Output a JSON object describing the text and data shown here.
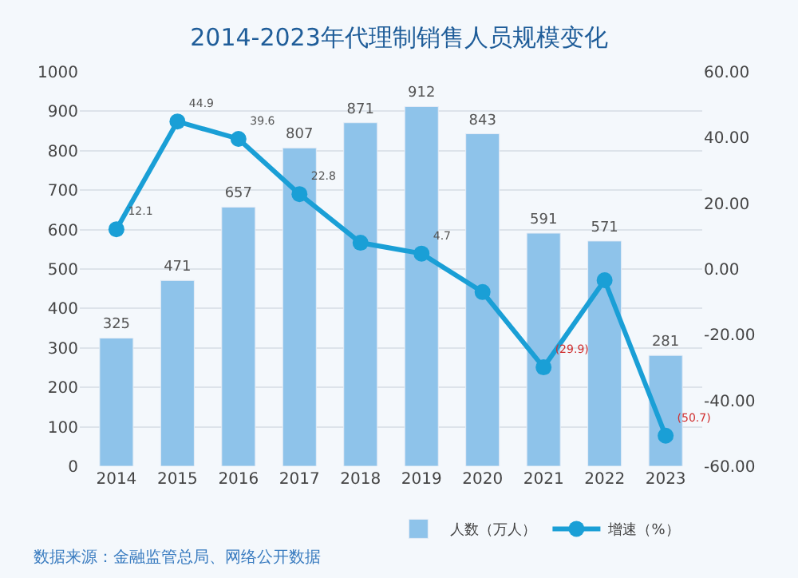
{
  "chart_data": {
    "type": "bar",
    "title": "2014-2023年代理制销售人员规模变化",
    "categories": [
      "2014",
      "2015",
      "2016",
      "2017",
      "2018",
      "2019",
      "2020",
      "2021",
      "2022",
      "2023"
    ],
    "series": [
      {
        "name": "人数（万人）",
        "color": "#8ec3ea",
        "values": [
          325,
          471,
          657,
          807,
          871,
          912,
          843,
          591,
          571,
          281
        ],
        "value_labels": [
          "325",
          "471",
          "657",
          "807",
          "871",
          "912",
          "843",
          "591",
          "571",
          "281"
        ]
      },
      {
        "name": "增速（%）",
        "type": "line",
        "axis": "y2",
        "color": "#1a9fd6",
        "values": [
          12.1,
          44.9,
          39.6,
          22.8,
          8.0,
          4.7,
          -7.0,
          -29.9,
          -3.4,
          -50.7
        ],
        "value_labels": [
          "12.1",
          "44.9",
          "39.6",
          "22.8",
          null,
          "4.7",
          null,
          "(29.9)",
          null,
          "(50.7)"
        ]
      }
    ],
    "ylim": [
      0,
      1000
    ],
    "yticks": [
      0,
      100,
      200,
      300,
      400,
      500,
      600,
      700,
      800,
      900,
      1000
    ],
    "y2lim": [
      -60,
      60
    ],
    "y2ticks": [
      {
        "value": -60,
        "label": "-60.00"
      },
      {
        "value": -40,
        "label": "-40.00"
      },
      {
        "value": -20,
        "label": "-20.00"
      },
      {
        "value": 0,
        "label": "0.00"
      },
      {
        "value": 20,
        "label": "20.00"
      },
      {
        "value": 40,
        "label": "40.00"
      },
      {
        "value": 60,
        "label": "60.00"
      }
    ],
    "grid": "y",
    "legend": "bottom",
    "marker": "circle",
    "line_style": "solid",
    "annotations": [
      "数据来源：金融监管总局、网络公开数据"
    ]
  }
}
